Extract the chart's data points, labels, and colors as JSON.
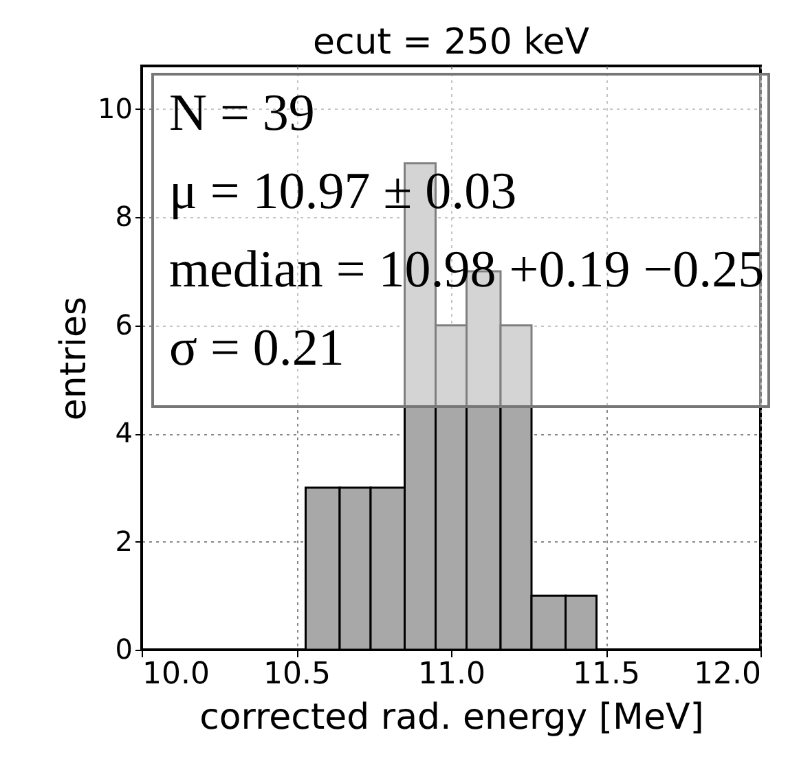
{
  "chart_data": {
    "type": "histogram",
    "title": "ecut = 250 keV",
    "xlabel": "corrected rad. energy [MeV]",
    "ylabel": "entries",
    "bins": [
      10.53,
      10.64,
      10.74,
      10.85,
      10.95,
      11.05,
      11.16,
      11.26,
      11.37,
      11.47
    ],
    "values": [
      3,
      3,
      3,
      9,
      6,
      7,
      6,
      1,
      1
    ],
    "color": "#a8a8a8",
    "xlim": [
      10.0,
      12.0
    ],
    "xticks": [
      {
        "value": 10.0,
        "label": "10.0"
      },
      {
        "value": 10.5,
        "label": "10.5"
      },
      {
        "value": 11.0,
        "label": "11.0"
      },
      {
        "value": 11.5,
        "label": "11.5"
      },
      {
        "value": 12.0,
        "label": "12.0"
      }
    ],
    "ylim": [
      0,
      10.8
    ],
    "yticks": [
      0,
      2,
      4,
      6,
      8,
      10
    ],
    "grid": true,
    "annotations": [
      "N = 39",
      "μ = 10.97 ± 0.03",
      "median = 10.98 +0.19 −0.25",
      "σ = 0.21"
    ]
  }
}
